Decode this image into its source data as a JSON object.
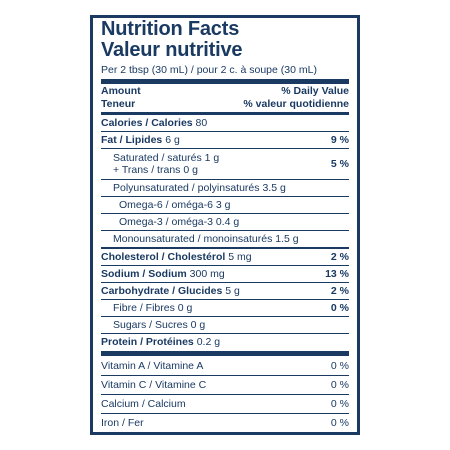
{
  "label": {
    "title_en": "Nutrition Facts",
    "title_fr": "Valeur nutritive",
    "serving": "Per 2 tbsp (30 mL) / pour 2 c. à soupe (30 mL)",
    "header": {
      "amount_en": "Amount",
      "amount_fr": "Teneur",
      "dv_en": "% Daily Value",
      "dv_fr": "% valeur quotidienne"
    },
    "calories": {
      "label": "Calories / Calories",
      "value": "80"
    },
    "fat": {
      "label": "Fat / Lipides",
      "value": "6 g",
      "dv": "9 %"
    },
    "saturated": {
      "line1_label": "Saturated / saturés",
      "line1_value": "1 g",
      "line2_label": "+ Trans / trans",
      "line2_value": "0 g",
      "dv": "5 %"
    },
    "polyunsaturated": {
      "label": "Polyunsaturated / polyinsaturés",
      "value": "3.5 g"
    },
    "omega6": {
      "label": "Omega-6 / oméga-6",
      "value": "3 g"
    },
    "omega3": {
      "label": "Omega-3 / oméga-3",
      "value": "0.4 g"
    },
    "monounsaturated": {
      "label": "Monounsaturated / monoinsaturés",
      "value": "1.5 g"
    },
    "cholesterol": {
      "label": "Cholesterol / Cholestérol",
      "value": "5 mg",
      "dv": "2 %"
    },
    "sodium": {
      "label": "Sodium / Sodium",
      "value": "300 mg",
      "dv": "13 %"
    },
    "carbohydrate": {
      "label": "Carbohydrate / Glucides",
      "value": "5 g",
      "dv": "2 %"
    },
    "fibre": {
      "label": "Fibre / Fibres",
      "value": "0 g",
      "dv": "0 %"
    },
    "sugars": {
      "label": "Sugars / Sucres",
      "value": "0 g"
    },
    "protein": {
      "label": "Protein / Protéines",
      "value": "0.2 g"
    },
    "vitamins": [
      {
        "label": "Vitamin A / Vitamine A",
        "dv": "0 %"
      },
      {
        "label": "Vitamin C / Vitamine C",
        "dv": "0 %"
      },
      {
        "label": "Calcium / Calcium",
        "dv": "0 %"
      },
      {
        "label": "Iron / Fer",
        "dv": "0 %"
      }
    ],
    "colors": {
      "ink": "#1a3a62",
      "background": "#ffffff"
    }
  }
}
